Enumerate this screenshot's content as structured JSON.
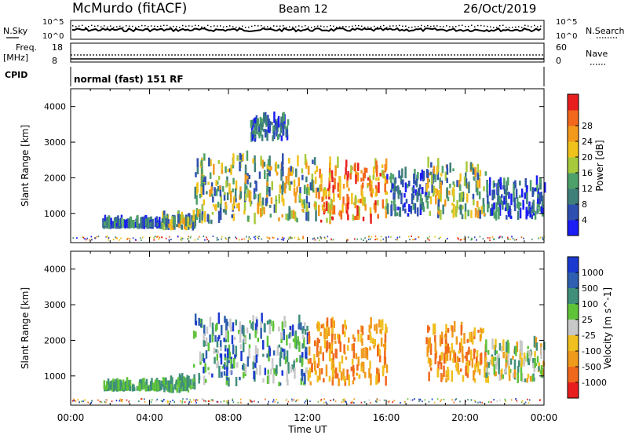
{
  "header": {
    "station": "McMurdo (fitACF)",
    "beam": "Beam 12",
    "date": "26/Oct/2019"
  },
  "status_panels": {
    "nsky_label": "N.Sky",
    "nsky_ticks": [
      "10^5",
      "10^0"
    ],
    "nsearch_label": "N.Search",
    "nsearch_ticks": [
      "10^5",
      "10^0"
    ],
    "freq_label": "Freq.",
    "freq_unit": "[MHz]",
    "freq_ticks": [
      "18",
      "8"
    ],
    "nave_label": "Nave",
    "nave_ticks": [
      "60",
      "0"
    ],
    "cpid_label": "CPID",
    "cpid_text": "normal (fast) 151 RF"
  },
  "colors": {
    "power": [
      "#1c1cf5",
      "#2e4fb0",
      "#3f7f7a",
      "#4ea06a",
      "#a7c93c",
      "#efc21c",
      "#f39a1c",
      "#f2681c",
      "#e81e1e"
    ],
    "velocity": [
      "#1c3ad0",
      "#2e5fb0",
      "#3f8f7a",
      "#5fc33a",
      "#c8c8c8",
      "#f0c020",
      "#f09a1c",
      "#f0681c",
      "#e81e1e"
    ]
  },
  "chart_data": [
    {
      "type": "heatmap",
      "title": "Power",
      "xlabel": "Time UT",
      "ylabel": "Slant Range [km]",
      "x_ticks": [
        "00:00",
        "04:00",
        "08:00",
        "12:00",
        "16:00",
        "20:00",
        "00:00"
      ],
      "x_range_hours": [
        0,
        24
      ],
      "y_ticks": [
        1000,
        2000,
        3000,
        4000
      ],
      "ylim": [
        180,
        4500
      ],
      "colorbar": {
        "label": "Power [dB]",
        "ticks": [
          "4",
          "8",
          "12",
          "16",
          "20",
          "24",
          "28"
        ],
        "range": [
          0,
          30
        ]
      },
      "echo_regions": [
        {
          "t0": 1.6,
          "t1": 4.6,
          "r0": 560,
          "r1": 640,
          "level": "low"
        },
        {
          "t0": 4.6,
          "t1": 6.3,
          "r0": 520,
          "r1": 780,
          "level": "mid"
        },
        {
          "t0": 6.2,
          "t1": 9.5,
          "r0": 700,
          "r1": 2500,
          "level": "mid"
        },
        {
          "t0": 9.5,
          "t1": 12.5,
          "r0": 700,
          "r1": 2400,
          "level": "mid"
        },
        {
          "t0": 9.0,
          "t1": 11.0,
          "r0": 3000,
          "r1": 3600,
          "level": "low"
        },
        {
          "t0": 12.5,
          "t1": 16.0,
          "r0": 700,
          "r1": 2300,
          "level": "high"
        },
        {
          "t0": 16.0,
          "t1": 18.0,
          "r0": 900,
          "r1": 2000,
          "level": "low"
        },
        {
          "t0": 18.0,
          "t1": 21.0,
          "r0": 800,
          "r1": 2300,
          "level": "mid"
        },
        {
          "t0": 21.0,
          "t1": 24.0,
          "r0": 800,
          "r1": 1800,
          "level": "low"
        }
      ]
    },
    {
      "type": "heatmap",
      "title": "Velocity",
      "xlabel": "Time UT",
      "ylabel": "Slant Range [km]",
      "x_ticks": [
        "00:00",
        "04:00",
        "08:00",
        "12:00",
        "16:00",
        "20:00",
        "00:00"
      ],
      "x_range_hours": [
        0,
        24
      ],
      "y_ticks": [
        1000,
        2000,
        3000,
        4000
      ],
      "ylim": [
        180,
        4500
      ],
      "colorbar": {
        "label": "Velocity [m s^-1]",
        "ticks": [
          "1000",
          "500",
          "100",
          "25",
          "-25",
          "-100",
          "-500",
          "-1000"
        ]
      },
      "echo_regions": [
        {
          "t0": 1.6,
          "t1": 4.6,
          "r0": 560,
          "r1": 640,
          "level": "slow-toward"
        },
        {
          "t0": 4.6,
          "t1": 6.3,
          "r0": 520,
          "r1": 780,
          "level": "slow-toward"
        },
        {
          "t0": 6.2,
          "t1": 12.0,
          "r0": 700,
          "r1": 2500,
          "level": "toward"
        },
        {
          "t0": 12.0,
          "t1": 16.0,
          "r0": 700,
          "r1": 2400,
          "level": "away"
        },
        {
          "t0": 18.0,
          "t1": 21.0,
          "r0": 800,
          "r1": 2300,
          "level": "away"
        },
        {
          "t0": 21.0,
          "t1": 24.0,
          "r0": 800,
          "r1": 1800,
          "level": "mixed"
        }
      ]
    }
  ]
}
